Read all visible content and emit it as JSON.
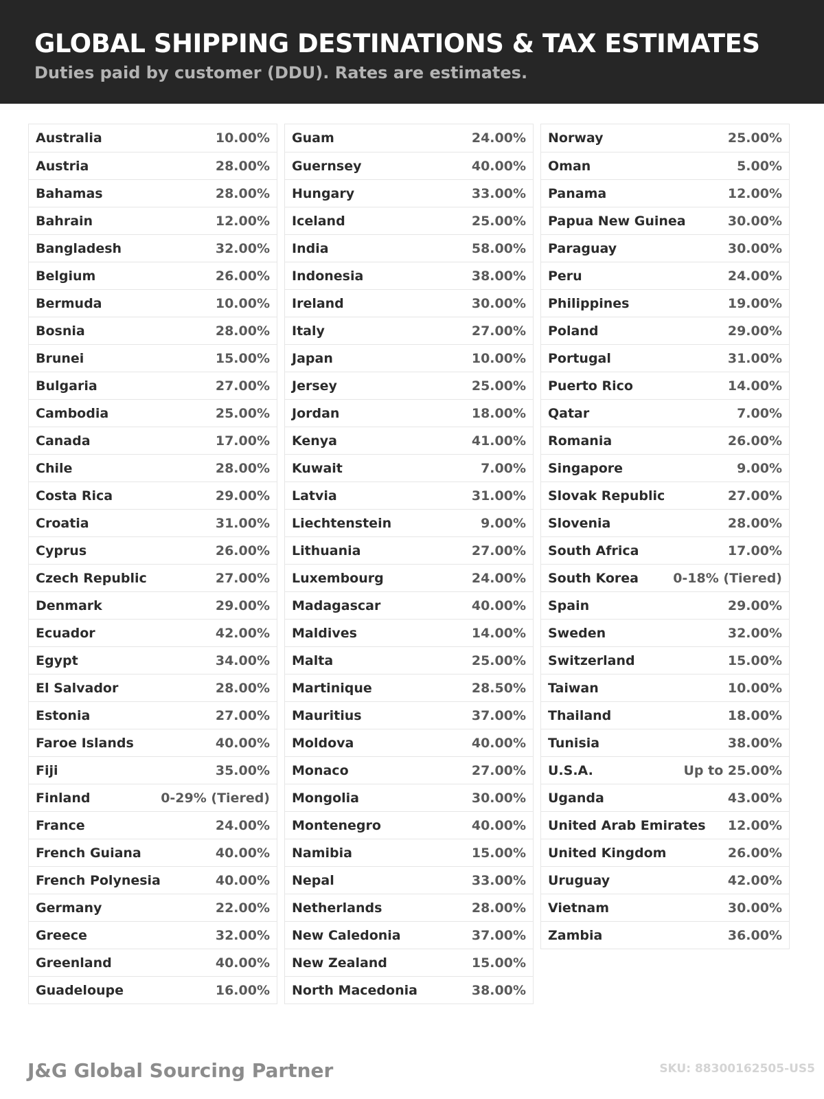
{
  "header": {
    "title": "GLOBAL SHIPPING DESTINATIONS & TAX ESTIMATES",
    "subtitle": "Duties paid by customer (DDU). Rates are estimates."
  },
  "columns": [
    [
      [
        "Australia",
        "10.00%"
      ],
      [
        "Austria",
        "28.00%"
      ],
      [
        "Bahamas",
        "28.00%"
      ],
      [
        "Bahrain",
        "12.00%"
      ],
      [
        "Bangladesh",
        "32.00%"
      ],
      [
        "Belgium",
        "26.00%"
      ],
      [
        "Bermuda",
        "10.00%"
      ],
      [
        "Bosnia",
        "28.00%"
      ],
      [
        "Brunei",
        "15.00%"
      ],
      [
        "Bulgaria",
        "27.00%"
      ],
      [
        "Cambodia",
        "25.00%"
      ],
      [
        "Canada",
        "17.00%"
      ],
      [
        "Chile",
        "28.00%"
      ],
      [
        "Costa Rica",
        "29.00%"
      ],
      [
        "Croatia",
        "31.00%"
      ],
      [
        "Cyprus",
        "26.00%"
      ],
      [
        "Czech Republic",
        "27.00%"
      ],
      [
        "Denmark",
        "29.00%"
      ],
      [
        "Ecuador",
        "42.00%"
      ],
      [
        "Egypt",
        "34.00%"
      ],
      [
        "El Salvador",
        "28.00%"
      ],
      [
        "Estonia",
        "27.00%"
      ],
      [
        "Faroe Islands",
        "40.00%"
      ],
      [
        "Fiji",
        "35.00%"
      ],
      [
        "Finland",
        "0-29% (Tiered)"
      ],
      [
        "France",
        "24.00%"
      ],
      [
        "French Guiana",
        "40.00%"
      ],
      [
        "French Polynesia",
        "40.00%"
      ],
      [
        "Germany",
        "22.00%"
      ],
      [
        "Greece",
        "32.00%"
      ],
      [
        "Greenland",
        "40.00%"
      ],
      [
        "Guadeloupe",
        "16.00%"
      ]
    ],
    [
      [
        "Guam",
        "24.00%"
      ],
      [
        "Guernsey",
        "40.00%"
      ],
      [
        "Hungary",
        "33.00%"
      ],
      [
        "Iceland",
        "25.00%"
      ],
      [
        "India",
        "58.00%"
      ],
      [
        "Indonesia",
        "38.00%"
      ],
      [
        "Ireland",
        "30.00%"
      ],
      [
        "Italy",
        "27.00%"
      ],
      [
        "Japan",
        "10.00%"
      ],
      [
        "Jersey",
        "25.00%"
      ],
      [
        "Jordan",
        "18.00%"
      ],
      [
        "Kenya",
        "41.00%"
      ],
      [
        "Kuwait",
        "7.00%"
      ],
      [
        "Latvia",
        "31.00%"
      ],
      [
        "Liechtenstein",
        "9.00%"
      ],
      [
        "Lithuania",
        "27.00%"
      ],
      [
        "Luxembourg",
        "24.00%"
      ],
      [
        "Madagascar",
        "40.00%"
      ],
      [
        "Maldives",
        "14.00%"
      ],
      [
        "Malta",
        "25.00%"
      ],
      [
        "Martinique",
        "28.50%"
      ],
      [
        "Mauritius",
        "37.00%"
      ],
      [
        "Moldova",
        "40.00%"
      ],
      [
        "Monaco",
        "27.00%"
      ],
      [
        "Mongolia",
        "30.00%"
      ],
      [
        "Montenegro",
        "40.00%"
      ],
      [
        "Namibia",
        "15.00%"
      ],
      [
        "Nepal",
        "33.00%"
      ],
      [
        "Netherlands",
        "28.00%"
      ],
      [
        "New Caledonia",
        "37.00%"
      ],
      [
        "New Zealand",
        "15.00%"
      ],
      [
        "North Macedonia",
        "38.00%"
      ]
    ],
    [
      [
        "Norway",
        "25.00%"
      ],
      [
        "Oman",
        "5.00%"
      ],
      [
        "Panama",
        "12.00%"
      ],
      [
        "Papua New Guinea",
        "30.00%"
      ],
      [
        "Paraguay",
        "30.00%"
      ],
      [
        "Peru",
        "24.00%"
      ],
      [
        "Philippines",
        "19.00%"
      ],
      [
        "Poland",
        "29.00%"
      ],
      [
        "Portugal",
        "31.00%"
      ],
      [
        "Puerto Rico",
        "14.00%"
      ],
      [
        "Qatar",
        "7.00%"
      ],
      [
        "Romania",
        "26.00%"
      ],
      [
        "Singapore",
        "9.00%"
      ],
      [
        "Slovak Republic",
        "27.00%"
      ],
      [
        "Slovenia",
        "28.00%"
      ],
      [
        "South Africa",
        "17.00%"
      ],
      [
        "South Korea",
        "0-18% (Tiered)"
      ],
      [
        "Spain",
        "29.00%"
      ],
      [
        "Sweden",
        "32.00%"
      ],
      [
        "Switzerland",
        "15.00%"
      ],
      [
        "Taiwan",
        "10.00%"
      ],
      [
        "Thailand",
        "18.00%"
      ],
      [
        "Tunisia",
        "38.00%"
      ],
      [
        "U.S.A.",
        "Up to 25.00%"
      ],
      [
        "Uganda",
        "43.00%"
      ],
      [
        "United Arab Emirates",
        "12.00%"
      ],
      [
        "United Kingdom",
        "26.00%"
      ],
      [
        "Uruguay",
        "42.00%"
      ],
      [
        "Vietnam",
        "30.00%"
      ],
      [
        "Zambia",
        "36.00%"
      ]
    ]
  ],
  "footer": {
    "brand": "J&G Global Sourcing Partner",
    "sku": "SKU: 88300162505-US5"
  }
}
